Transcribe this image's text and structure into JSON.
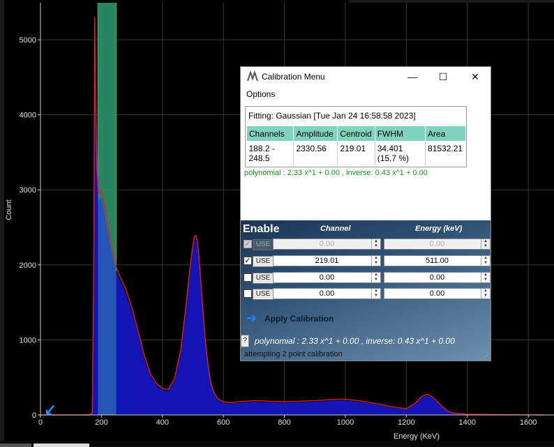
{
  "chart_data": {
    "type": "area",
    "title": "",
    "xlabel": "Energy (KeV)",
    "ylabel": "Count",
    "xlim": [
      0,
      1650
    ],
    "ylim": [
      0,
      5400
    ],
    "xticks": [
      0,
      200,
      400,
      600,
      800,
      1000,
      1200,
      1400,
      1600
    ],
    "yticks": [
      0,
      1000,
      2000,
      3000,
      4000,
      5000
    ],
    "grid": true,
    "series": [
      {
        "color": "#1414b4",
        "x": [
          0,
          160,
          170,
          175,
          178,
          180,
          185,
          190,
          200,
          210,
          220,
          230,
          240,
          250,
          260,
          280,
          300,
          320,
          340,
          360,
          380,
          400,
          420,
          440,
          460,
          480,
          490,
          500,
          505,
          510,
          515,
          520,
          530,
          540,
          550,
          560,
          570,
          580,
          590,
          600,
          620,
          650,
          700,
          800,
          900,
          950,
          1000,
          1050,
          1100,
          1150,
          1200,
          1230,
          1250,
          1270,
          1290,
          1310,
          1330,
          1350,
          1400,
          1500,
          1650
        ],
        "y": [
          0,
          0,
          20,
          1800,
          5200,
          4200,
          3200,
          2850,
          2900,
          2700,
          2450,
          2250,
          2050,
          1900,
          1800,
          1620,
          1380,
          1080,
          760,
          520,
          400,
          330,
          320,
          460,
          820,
          1500,
          1900,
          2200,
          2320,
          2330,
          2250,
          2050,
          1500,
          980,
          620,
          380,
          270,
          210,
          180,
          160,
          150,
          160,
          175,
          160,
          175,
          190,
          195,
          170,
          140,
          100,
          75,
          150,
          230,
          260,
          210,
          130,
          60,
          25,
          8,
          3,
          0
        ]
      },
      {
        "color": "#e21e24",
        "x": [
          0,
          160,
          170,
          175,
          178,
          180,
          185,
          190,
          200,
          210,
          220,
          230,
          240,
          250,
          260,
          280,
          300,
          320,
          340,
          360,
          380,
          400,
          420,
          440,
          460,
          480,
          490,
          500,
          505,
          510,
          515,
          520,
          530,
          540,
          550,
          560,
          570,
          580,
          590,
          600,
          620,
          650,
          700,
          800,
          900,
          950,
          1000,
          1050,
          1100,
          1150,
          1200,
          1230,
          1250,
          1270,
          1290,
          1310,
          1330,
          1350,
          1400,
          1500,
          1650
        ],
        "y": [
          0,
          0,
          30,
          2000,
          5300,
          4400,
          3300,
          2950,
          3000,
          2800,
          2550,
          2330,
          2120,
          1950,
          1850,
          1680,
          1430,
          1120,
          800,
          550,
          420,
          350,
          340,
          490,
          860,
          1550,
          1950,
          2260,
          2380,
          2390,
          2300,
          2100,
          1560,
          1020,
          650,
          400,
          290,
          225,
          195,
          175,
          165,
          175,
          190,
          175,
          190,
          205,
          210,
          185,
          152,
          110,
          82,
          160,
          245,
          278,
          225,
          140,
          65,
          28,
          9,
          4,
          0
        ]
      }
    ],
    "highlight_band": {
      "x": [
        188.2,
        248.5
      ],
      "color": "#1e7a1e"
    },
    "marker": {
      "x": 30,
      "y": 60,
      "color": "#1e90ff"
    }
  },
  "calibration_window": {
    "title": "Calibration Menu",
    "logo_icon": "wave-logo-icon",
    "controls": {
      "minimize": "—",
      "maximize": "☐",
      "close": "✕"
    },
    "menu": {
      "options": "Options"
    },
    "fitting_title": "Fitting: Gaussian [Tue Jan 24 16:58:58 2023]",
    "table": {
      "headers": [
        "Channels",
        "Amplitude",
        "Centroid",
        "FWHM",
        "Area"
      ],
      "row": [
        "188.2 - 248.5",
        "2330.56",
        "219.01",
        "34.401 (15.7 %)",
        "81532.21"
      ]
    },
    "polynomial_line": "polynomial : 2.33 x^1 + 0.00 , inverse: 0.43 x^1 + 0.00",
    "enable_header": "Enable",
    "channel_header": "Channel",
    "energy_header": "Energy (keV)",
    "use_label": "USE",
    "rows": [
      {
        "checked": true,
        "enabled": false,
        "channel": "0.00",
        "energy": "0.00"
      },
      {
        "checked": true,
        "enabled": true,
        "channel": "219.01",
        "energy": "511.00"
      },
      {
        "checked": false,
        "enabled": true,
        "channel": "0.00",
        "energy": "0.00"
      },
      {
        "checked": false,
        "enabled": true,
        "channel": "0.00",
        "energy": "0.00"
      }
    ],
    "apply_label": "Apply Calibration",
    "apply_icon": "arrow-right-icon",
    "help_label": "?",
    "polynomial_italic": "polynomial : 2.33 x^1  + 0.00 , inverse: 0.43 x^1  + 0.00",
    "status": "attempting 2 point calibration"
  }
}
